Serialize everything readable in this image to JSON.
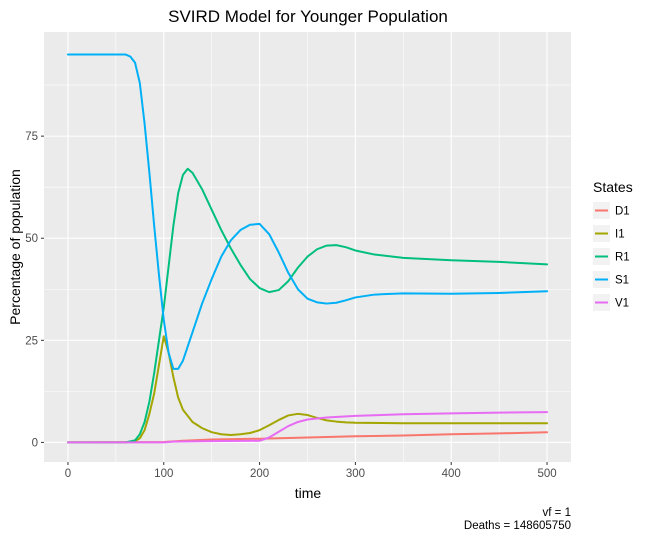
{
  "chart_data": {
    "type": "line",
    "title": "SVIRD Model for Younger Population",
    "xlabel": "time",
    "ylabel": "Percentage of population",
    "xlim": [
      -25,
      525
    ],
    "ylim": [
      -4.8,
      100.5
    ],
    "xticks": [
      0,
      100,
      200,
      300,
      400,
      500
    ],
    "xtick_labels": [
      "0",
      "100",
      "200",
      "300",
      "400",
      "500"
    ],
    "yticks": [
      0,
      25,
      50,
      75
    ],
    "ytick_labels": [
      "0",
      "25",
      "50",
      "75"
    ],
    "grid": true,
    "legend_title": "States",
    "legend_position": "right",
    "caption_lines": [
      "vf = 1",
      "Deaths = 148605750"
    ],
    "series": [
      {
        "name": "D1",
        "color": "#F8766D",
        "points": [
          [
            0,
            0
          ],
          [
            100,
            0.1
          ],
          [
            120,
            0.4
          ],
          [
            150,
            0.7
          ],
          [
            200,
            0.9
          ],
          [
            250,
            1.2
          ],
          [
            300,
            1.5
          ],
          [
            350,
            1.7
          ],
          [
            400,
            2.0
          ],
          [
            450,
            2.2
          ],
          [
            500,
            2.5
          ]
        ]
      },
      {
        "name": "I1",
        "color": "#A3A500",
        "points": [
          [
            0,
            0
          ],
          [
            60,
            0
          ],
          [
            70,
            0.3
          ],
          [
            75,
            1
          ],
          [
            80,
            3
          ],
          [
            85,
            7
          ],
          [
            90,
            12
          ],
          [
            95,
            19
          ],
          [
            100,
            26
          ],
          [
            105,
            22
          ],
          [
            110,
            16
          ],
          [
            115,
            11
          ],
          [
            120,
            8
          ],
          [
            130,
            5
          ],
          [
            140,
            3.5
          ],
          [
            150,
            2.5
          ],
          [
            160,
            2
          ],
          [
            170,
            1.8
          ],
          [
            180,
            2
          ],
          [
            190,
            2.3
          ],
          [
            200,
            3
          ],
          [
            210,
            4.2
          ],
          [
            220,
            5.5
          ],
          [
            230,
            6.6
          ],
          [
            240,
            7
          ],
          [
            250,
            6.7
          ],
          [
            260,
            6
          ],
          [
            270,
            5.4
          ],
          [
            280,
            5.1
          ],
          [
            290,
            4.9
          ],
          [
            300,
            4.8
          ],
          [
            350,
            4.7
          ],
          [
            400,
            4.7
          ],
          [
            450,
            4.7
          ],
          [
            500,
            4.7
          ]
        ]
      },
      {
        "name": "R1",
        "color": "#00BF7D",
        "points": [
          [
            0,
            0
          ],
          [
            60,
            0
          ],
          [
            70,
            0.5
          ],
          [
            75,
            2
          ],
          [
            80,
            5
          ],
          [
            85,
            10
          ],
          [
            90,
            17
          ],
          [
            95,
            25
          ],
          [
            100,
            33
          ],
          [
            105,
            43
          ],
          [
            110,
            53
          ],
          [
            115,
            61
          ],
          [
            120,
            65.5
          ],
          [
            125,
            67
          ],
          [
            130,
            66
          ],
          [
            140,
            62
          ],
          [
            150,
            57
          ],
          [
            160,
            52
          ],
          [
            170,
            47.5
          ],
          [
            180,
            43.5
          ],
          [
            190,
            40
          ],
          [
            200,
            37.8
          ],
          [
            210,
            36.8
          ],
          [
            220,
            37.3
          ],
          [
            230,
            39.5
          ],
          [
            240,
            42.8
          ],
          [
            250,
            45.5
          ],
          [
            260,
            47.3
          ],
          [
            270,
            48.2
          ],
          [
            280,
            48.3
          ],
          [
            290,
            47.8
          ],
          [
            300,
            47
          ],
          [
            320,
            46
          ],
          [
            350,
            45.2
          ],
          [
            400,
            44.6
          ],
          [
            450,
            44.2
          ],
          [
            500,
            43.6
          ]
        ]
      },
      {
        "name": "S1",
        "color": "#00B0F6",
        "points": [
          [
            0,
            95
          ],
          [
            50,
            95
          ],
          [
            60,
            95
          ],
          [
            65,
            94.5
          ],
          [
            70,
            93
          ],
          [
            75,
            88
          ],
          [
            80,
            78
          ],
          [
            85,
            66
          ],
          [
            90,
            53
          ],
          [
            95,
            41
          ],
          [
            100,
            30
          ],
          [
            105,
            22
          ],
          [
            110,
            18
          ],
          [
            115,
            18
          ],
          [
            120,
            20
          ],
          [
            130,
            27
          ],
          [
            140,
            34
          ],
          [
            150,
            40
          ],
          [
            160,
            45.5
          ],
          [
            170,
            49.5
          ],
          [
            180,
            52
          ],
          [
            190,
            53.3
          ],
          [
            200,
            53.5
          ],
          [
            210,
            51
          ],
          [
            220,
            46.5
          ],
          [
            230,
            41.5
          ],
          [
            240,
            37.5
          ],
          [
            250,
            35.2
          ],
          [
            260,
            34.3
          ],
          [
            270,
            34
          ],
          [
            280,
            34.2
          ],
          [
            290,
            34.8
          ],
          [
            300,
            35.5
          ],
          [
            320,
            36.2
          ],
          [
            350,
            36.5
          ],
          [
            400,
            36.4
          ],
          [
            450,
            36.6
          ],
          [
            500,
            37
          ]
        ]
      },
      {
        "name": "V1",
        "color": "#E76BF3",
        "points": [
          [
            0,
            0
          ],
          [
            100,
            0
          ],
          [
            110,
            0.2
          ],
          [
            150,
            0.3
          ],
          [
            200,
            0.4
          ],
          [
            210,
            1.2
          ],
          [
            220,
            2.6
          ],
          [
            230,
            4
          ],
          [
            240,
            5
          ],
          [
            250,
            5.6
          ],
          [
            270,
            6.1
          ],
          [
            300,
            6.5
          ],
          [
            350,
            6.9
          ],
          [
            400,
            7.1
          ],
          [
            450,
            7.3
          ],
          [
            500,
            7.4
          ]
        ]
      }
    ]
  }
}
